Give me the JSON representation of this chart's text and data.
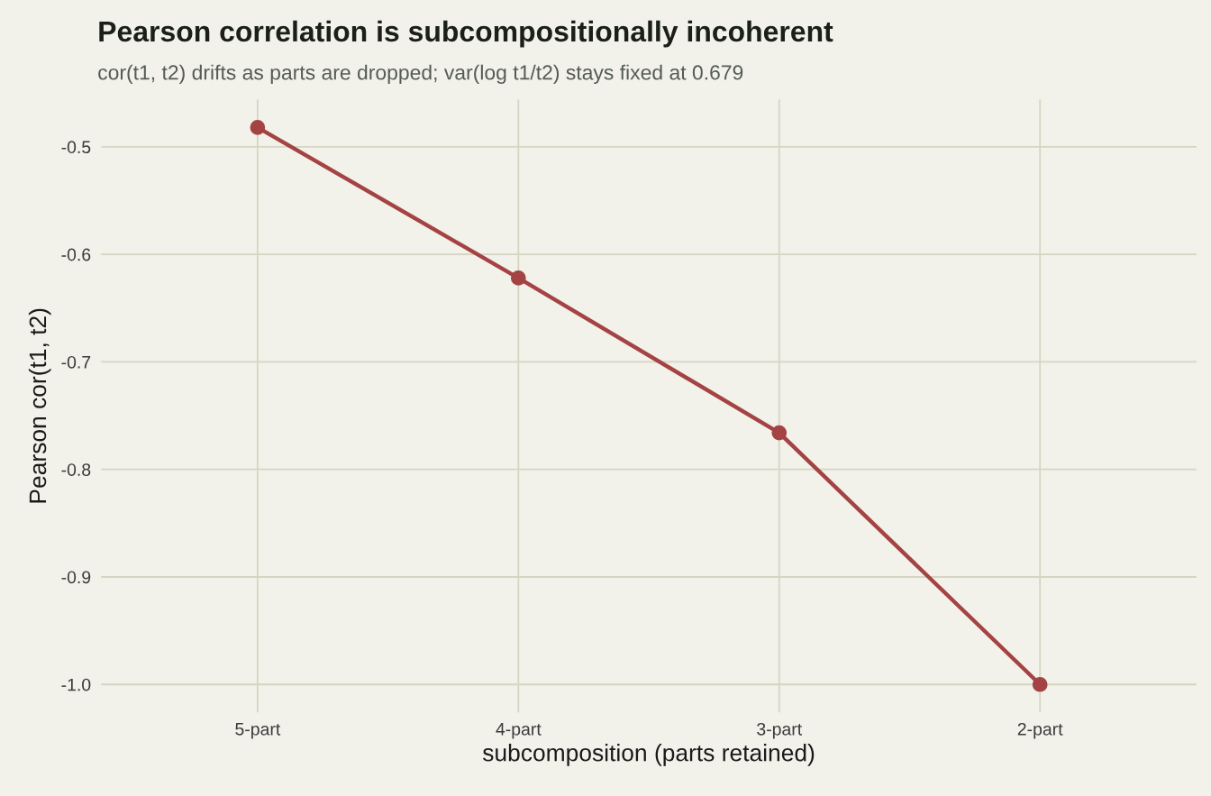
{
  "chart_data": {
    "type": "line",
    "title": "Pearson correlation is subcompositionally incoherent",
    "subtitle": "cor(t1, t2) drifts as parts are dropped; var(log t1/t2) stays fixed at 0.679",
    "xlabel": "subcomposition (parts retained)",
    "ylabel": "Pearson cor(t1, t2)",
    "categories": [
      "5-part",
      "4-part",
      "3-part",
      "2-part"
    ],
    "series": [
      {
        "color": "#a44343",
        "values": [
          -0.482,
          -0.622,
          -0.766,
          -1.0
        ]
      }
    ],
    "ylim": [
      -1.026,
      -0.456
    ],
    "yticks": [
      {
        "value": -1.0,
        "label": "-1.0"
      },
      {
        "value": -0.9,
        "label": "-0.9"
      },
      {
        "value": -0.8,
        "label": "-0.8"
      },
      {
        "value": -0.7,
        "label": "-0.7"
      },
      {
        "value": -0.6,
        "label": "-0.6"
      },
      {
        "value": -0.5,
        "label": "-0.5"
      }
    ],
    "grid": true,
    "marker": "circle",
    "line_style": "solid"
  }
}
